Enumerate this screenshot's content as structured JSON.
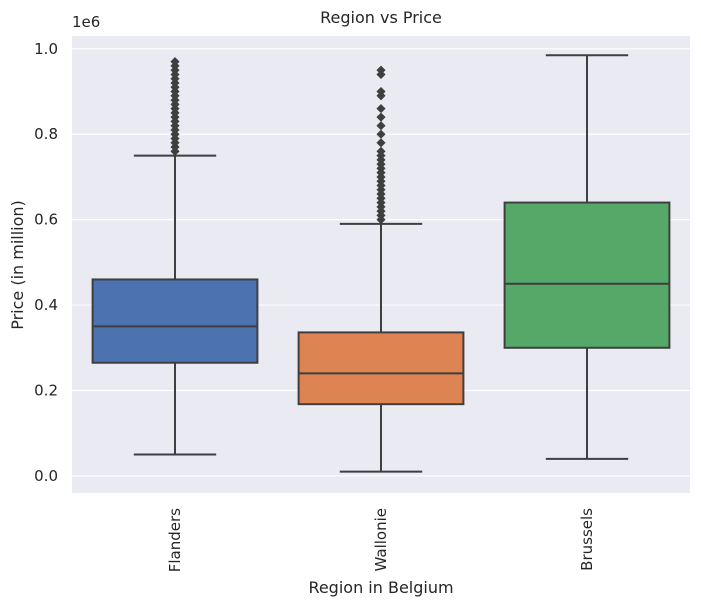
{
  "chart_data": {
    "type": "box",
    "title": "Region vs Price",
    "xlabel": "Region in Belgium",
    "ylabel": "Price (in million)",
    "y_offset_label": "1e6",
    "ylim": [
      -0.04,
      1.03
    ],
    "yticks": [
      0.0,
      0.2,
      0.4,
      0.6,
      0.8,
      1.0
    ],
    "ytick_labels": [
      "0.0",
      "0.2",
      "0.4",
      "0.6",
      "0.8",
      "1.0"
    ],
    "grid": true,
    "categories": [
      "Flanders",
      "Wallonie",
      "Brussels"
    ],
    "series": [
      {
        "category": "Flanders",
        "color": "#4c72b0",
        "whisker_low": 0.05,
        "q1": 0.265,
        "median": 0.35,
        "q3": 0.46,
        "whisker_high": 0.75,
        "outliers": [
          0.76,
          0.77,
          0.78,
          0.79,
          0.8,
          0.81,
          0.82,
          0.83,
          0.84,
          0.85,
          0.86,
          0.87,
          0.88,
          0.89,
          0.9,
          0.91,
          0.92,
          0.93,
          0.94,
          0.95,
          0.96,
          0.97
        ]
      },
      {
        "category": "Wallonie",
        "color": "#dd8452",
        "whisker_low": 0.01,
        "q1": 0.168,
        "median": 0.24,
        "q3": 0.336,
        "whisker_high": 0.59,
        "outliers": [
          0.6,
          0.61,
          0.62,
          0.63,
          0.64,
          0.65,
          0.66,
          0.67,
          0.68,
          0.69,
          0.7,
          0.71,
          0.72,
          0.73,
          0.74,
          0.75,
          0.76,
          0.78,
          0.8,
          0.82,
          0.84,
          0.86,
          0.89,
          0.9,
          0.94,
          0.95
        ]
      },
      {
        "category": "Brussels",
        "color": "#55a868",
        "whisker_low": 0.04,
        "q1": 0.3,
        "median": 0.45,
        "q3": 0.64,
        "whisker_high": 0.985,
        "outliers": []
      }
    ]
  }
}
